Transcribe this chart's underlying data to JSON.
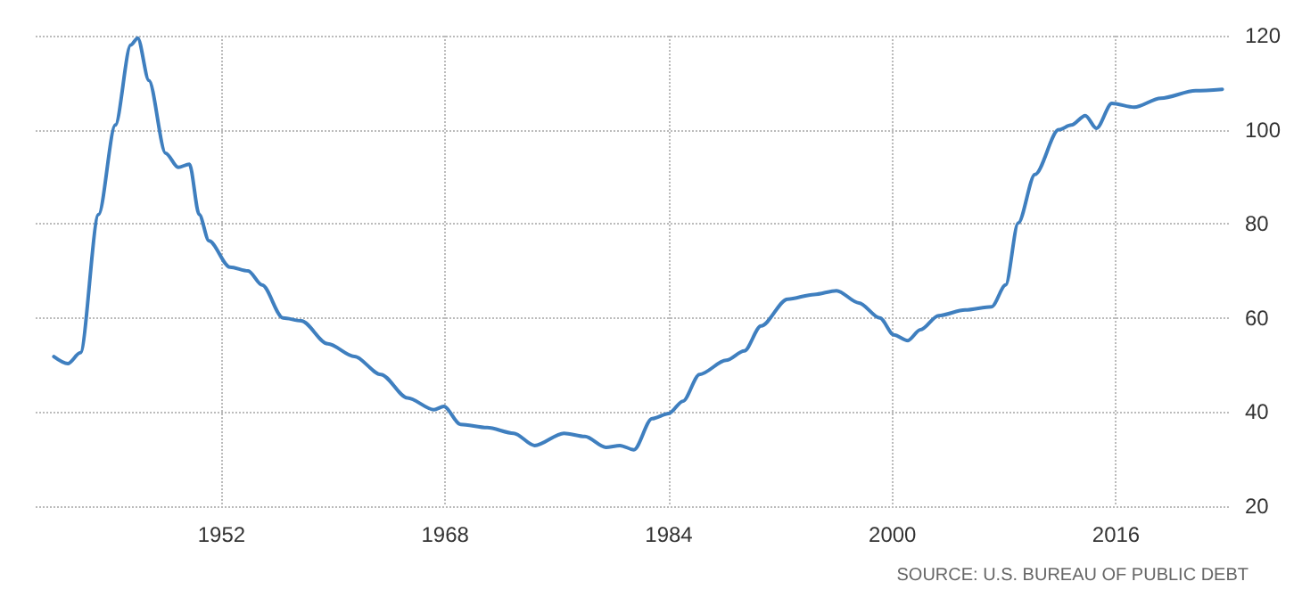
{
  "chart_data": {
    "type": "line",
    "x": [
      1940.0,
      1941.0,
      1941.9,
      1943.2,
      1944.4,
      1945.5,
      1946.0,
      1946.8,
      1948.0,
      1948.9,
      1949.7,
      1950.4,
      1951.1,
      1952.6,
      1953.9,
      1954.9,
      1956.4,
      1957.7,
      1959.6,
      1961.5,
      1963.4,
      1965.3,
      1967.2,
      1967.9,
      1969.1,
      1971.0,
      1972.9,
      1974.4,
      1976.5,
      1978.0,
      1979.5,
      1980.5,
      1981.5,
      1982.8,
      1984.0,
      1985.0,
      1986.2,
      1988.1,
      1989.4,
      1990.6,
      1992.5,
      1994.4,
      1996.0,
      1997.6,
      1999.1,
      2000.1,
      2001.1,
      2002.0,
      2003.3,
      2005.2,
      2007.1,
      2008.1,
      2009.0,
      2010.2,
      2011.9,
      2012.8,
      2013.8,
      2014.6,
      2015.7,
      2017.3,
      2019.2,
      2021.7,
      2023.6
    ],
    "series": [
      {
        "color": "#3f7fbf",
        "values": [
          51.8,
          50.3,
          52.6,
          82,
          101,
          118,
          119.5,
          110.5,
          95,
          92,
          92.7,
          82,
          76.4,
          70.8,
          70,
          67,
          60,
          59.4,
          54.5,
          51.8,
          48,
          43,
          40.5,
          41.2,
          37.4,
          36.7,
          35.5,
          32.9,
          35.5,
          34.8,
          32.5,
          32.9,
          32,
          38.6,
          39.7,
          42.3,
          48,
          51,
          53,
          58.3,
          64,
          65,
          65.8,
          63.2,
          60,
          56.4,
          55.2,
          57.5,
          60.5,
          61.7,
          62.4,
          67,
          80.2,
          90.5,
          100,
          101,
          103,
          100.3,
          105.6,
          104.8,
          106.7,
          108.3,
          108.6
        ]
      }
    ],
    "xlim": [
      1938.7,
      2024.2
    ],
    "xticks": [
      1952,
      1968,
      1984,
      2000,
      2016
    ],
    "ylim": [
      20,
      120
    ],
    "yticks": [
      20,
      40,
      60,
      80,
      100,
      120
    ],
    "grid": true,
    "marker": "none",
    "line_style": "solid",
    "annotations": [
      "SOURCE: U.S. BUREAU OF PUBLIC DEBT"
    ]
  }
}
